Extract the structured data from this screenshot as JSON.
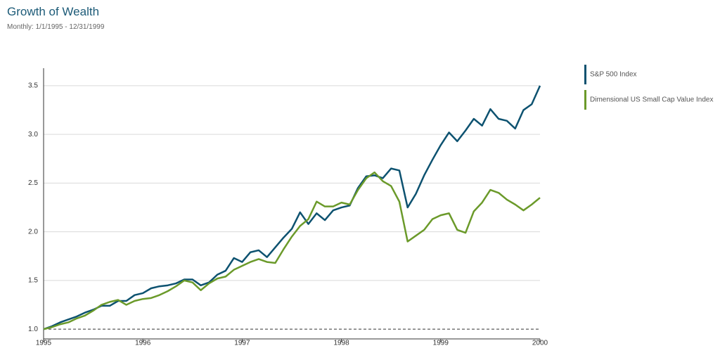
{
  "chart_data": {
    "type": "line",
    "title": "Growth of Wealth",
    "subtitle": "Monthly: 1/1/1995 - 12/31/1999",
    "categories": [
      "1995",
      null,
      null,
      null,
      null,
      null,
      null,
      null,
      null,
      null,
      null,
      null,
      "1996",
      null,
      null,
      null,
      null,
      null,
      null,
      null,
      null,
      null,
      null,
      null,
      "1997",
      null,
      null,
      null,
      null,
      null,
      null,
      null,
      null,
      null,
      null,
      null,
      "1998",
      null,
      null,
      null,
      null,
      null,
      null,
      null,
      null,
      null,
      null,
      null,
      "1999",
      null,
      null,
      null,
      null,
      null,
      null,
      null,
      null,
      null,
      null,
      null,
      "2000"
    ],
    "series": [
      {
        "name": "S&P 500 Index",
        "color": "#0d5270",
        "values": [
          1.0,
          1.03,
          1.07,
          1.1,
          1.13,
          1.17,
          1.2,
          1.24,
          1.24,
          1.29,
          1.29,
          1.35,
          1.37,
          1.42,
          1.44,
          1.45,
          1.47,
          1.51,
          1.51,
          1.45,
          1.48,
          1.56,
          1.6,
          1.73,
          1.69,
          1.79,
          1.81,
          1.74,
          1.84,
          1.94,
          2.03,
          2.2,
          2.08,
          2.19,
          2.12,
          2.22,
          2.25,
          2.27,
          2.45,
          2.57,
          2.58,
          2.55,
          2.65,
          2.63,
          2.25,
          2.39,
          2.58,
          2.74,
          2.89,
          3.02,
          2.93,
          3.04,
          3.16,
          3.09,
          3.26,
          3.16,
          3.14,
          3.06,
          3.25,
          3.31,
          3.5
        ]
      },
      {
        "name": "Dimensional US Small Cap Value Index",
        "color": "#6b9a2a",
        "values": [
          1.0,
          1.02,
          1.05,
          1.07,
          1.11,
          1.14,
          1.19,
          1.25,
          1.28,
          1.3,
          1.25,
          1.29,
          1.31,
          1.32,
          1.35,
          1.39,
          1.44,
          1.5,
          1.48,
          1.4,
          1.47,
          1.52,
          1.54,
          1.61,
          1.65,
          1.69,
          1.72,
          1.69,
          1.68,
          1.82,
          1.95,
          2.06,
          2.13,
          2.31,
          2.26,
          2.26,
          2.3,
          2.28,
          2.43,
          2.55,
          2.61,
          2.52,
          2.47,
          2.31,
          1.9,
          1.96,
          2.02,
          2.13,
          2.17,
          2.19,
          2.02,
          1.99,
          2.21,
          2.3,
          2.43,
          2.4,
          2.33,
          2.28,
          2.22,
          2.28,
          2.35
        ]
      }
    ],
    "ylim": [
      0.9,
      3.68
    ],
    "yticks": [
      {
        "value": 1,
        "label": "1.0"
      },
      {
        "value": 1.5,
        "label": "1.5"
      },
      {
        "value": 2,
        "label": "2.0"
      },
      {
        "value": 2.5,
        "label": "2.5"
      },
      {
        "value": 3,
        "label": "3.0"
      },
      {
        "value": 3.5,
        "label": "3.5"
      }
    ],
    "grid": true,
    "reference_line": 1,
    "legend_position": "right"
  }
}
